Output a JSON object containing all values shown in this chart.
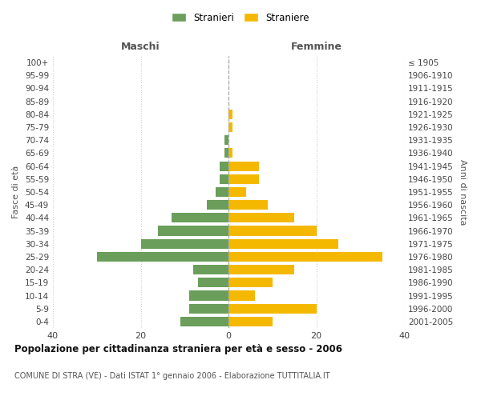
{
  "age_groups": [
    "0-4",
    "5-9",
    "10-14",
    "15-19",
    "20-24",
    "25-29",
    "30-34",
    "35-39",
    "40-44",
    "45-49",
    "50-54",
    "55-59",
    "60-64",
    "65-69",
    "70-74",
    "75-79",
    "80-84",
    "85-89",
    "90-94",
    "95-99",
    "100+"
  ],
  "birth_years": [
    "2001-2005",
    "1996-2000",
    "1991-1995",
    "1986-1990",
    "1981-1985",
    "1976-1980",
    "1971-1975",
    "1966-1970",
    "1961-1965",
    "1956-1960",
    "1951-1955",
    "1946-1950",
    "1941-1945",
    "1936-1940",
    "1931-1935",
    "1926-1930",
    "1921-1925",
    "1916-1920",
    "1911-1915",
    "1906-1910",
    "≤ 1905"
  ],
  "maschi": [
    11,
    9,
    9,
    7,
    8,
    30,
    20,
    16,
    13,
    5,
    3,
    2,
    2,
    1,
    1,
    0,
    0,
    0,
    0,
    0,
    0
  ],
  "femmine": [
    10,
    20,
    6,
    10,
    15,
    35,
    25,
    20,
    15,
    9,
    4,
    7,
    7,
    1,
    0,
    1,
    1,
    0,
    0,
    0,
    0
  ],
  "color_maschi": "#6a9e5a",
  "color_femmine": "#f5b800",
  "title": "Popolazione per cittadinanza straniera per età e sesso - 2006",
  "subtitle": "COMUNE DI STRA (VE) - Dati ISTAT 1° gennaio 2006 - Elaborazione TUTTITALIA.IT",
  "xlabel_left": "Maschi",
  "xlabel_right": "Femmine",
  "ylabel_left": "Fasce di età",
  "ylabel_right": "Anni di nascita",
  "legend_maschi": "Stranieri",
  "legend_femmine": "Straniere",
  "xlim": 40,
  "background_color": "#ffffff",
  "grid_color": "#cccccc",
  "bar_height": 0.75
}
